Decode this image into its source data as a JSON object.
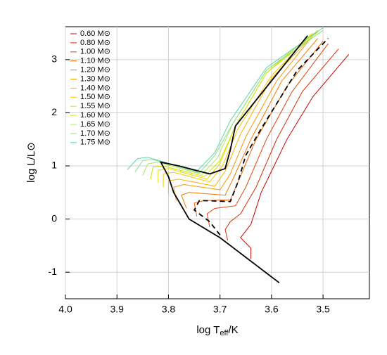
{
  "chart_data": {
    "type": "line",
    "x_label": "log T",
    "x_label_sub": "eff",
    "x_label_suffix": "/K",
    "y_label": "log L/L⊙",
    "xlim": [
      4.0,
      3.41
    ],
    "ylim": [
      -1.5,
      3.62
    ],
    "xticks": [
      {
        "value": 4.0,
        "label": "4.0"
      },
      3.9,
      3.8,
      3.7,
      3.6,
      3.5
    ],
    "yticks": [
      -1,
      0,
      1,
      2,
      3
    ],
    "grid": true,
    "legend": "upper left",
    "series": [
      {
        "name": "0.60 M⊙",
        "color": "#cc0000",
        "x": [
          3.64,
          3.64,
          3.66,
          3.64,
          3.62,
          3.57,
          3.52,
          3.45
        ],
        "values": [
          -0.75,
          -0.55,
          -0.35,
          -0.1,
          0.5,
          1.5,
          2.3,
          3.1
        ]
      },
      {
        "name": "0.80 M⊙",
        "color": "#d42a00",
        "x": [
          3.685,
          3.69,
          3.68,
          3.66,
          3.63,
          3.59,
          3.54,
          3.47
        ],
        "values": [
          -0.4,
          -0.2,
          -0.05,
          0.1,
          0.6,
          1.5,
          2.4,
          3.2
        ]
      },
      {
        "name": "1.00 M⊙",
        "color": "#e04500",
        "x": [
          3.72,
          3.725,
          3.71,
          3.67,
          3.65,
          3.61,
          3.56,
          3.49
        ],
        "values": [
          -0.15,
          0.1,
          0.2,
          0.25,
          0.6,
          1.5,
          2.4,
          3.3
        ]
      },
      {
        "name": "1.10 M⊙",
        "color": "#e86000",
        "x": [
          3.745,
          3.75,
          3.73,
          3.68,
          3.665,
          3.63,
          3.57,
          3.5
        ],
        "values": [
          0.05,
          0.3,
          0.35,
          0.36,
          0.7,
          1.5,
          2.5,
          3.35
        ]
      },
      {
        "name": "1.20 M⊙",
        "color": "#ef7a00",
        "x": [
          3.765,
          3.775,
          3.76,
          3.69,
          3.675,
          3.64,
          3.58,
          3.51
        ],
        "values": [
          0.2,
          0.45,
          0.5,
          0.45,
          0.75,
          1.5,
          2.6,
          3.4
        ]
      },
      {
        "name": "1.30 M⊙",
        "color": "#f59a00",
        "x": [
          3.785,
          3.79,
          3.77,
          3.7,
          3.68,
          3.65,
          3.59,
          3.52
        ],
        "values": [
          0.35,
          0.6,
          0.65,
          0.55,
          0.85,
          1.55,
          2.6,
          3.45
        ]
      },
      {
        "name": "1.40 M⊙",
        "color": "#f8b400",
        "x": [
          3.8,
          3.8,
          3.78,
          3.71,
          3.69,
          3.66,
          3.6,
          3.52
        ],
        "values": [
          0.48,
          0.72,
          0.75,
          0.62,
          0.9,
          1.6,
          2.65,
          3.45
        ]
      },
      {
        "name": "1.50 M⊙",
        "color": "#f2c800",
        "x": [
          3.81,
          3.81,
          3.79,
          3.72,
          3.695,
          3.665,
          3.6,
          3.52
        ],
        "values": [
          0.6,
          0.85,
          0.88,
          0.7,
          1.0,
          1.7,
          2.7,
          3.5
        ]
      },
      {
        "name": "1.55 M⊙",
        "color": "#e8dc00",
        "x": [
          3.82,
          3.82,
          3.8,
          3.725,
          3.7,
          3.67,
          3.61,
          3.52
        ],
        "values": [
          0.68,
          0.92,
          0.95,
          0.75,
          1.05,
          1.75,
          2.75,
          3.5
        ]
      },
      {
        "name": "1.60 M⊙",
        "color": "#d2e400",
        "x": [
          3.835,
          3.83,
          3.81,
          3.73,
          3.7,
          3.67,
          3.61,
          3.51
        ],
        "values": [
          0.75,
          0.98,
          1.0,
          0.8,
          1.1,
          1.75,
          2.75,
          3.52
        ]
      },
      {
        "name": "1.65 M⊙",
        "color": "#b4e65a",
        "x": [
          3.85,
          3.84,
          3.82,
          3.735,
          3.705,
          3.675,
          3.61,
          3.51
        ],
        "values": [
          0.82,
          1.04,
          1.07,
          0.84,
          1.15,
          1.8,
          2.8,
          3.55
        ]
      },
      {
        "name": "1.70 M⊙",
        "color": "#8ede8e",
        "x": [
          3.865,
          3.85,
          3.83,
          3.74,
          3.71,
          3.675,
          3.61,
          3.5
        ],
        "values": [
          0.88,
          1.1,
          1.12,
          0.87,
          1.2,
          1.8,
          2.8,
          3.55
        ]
      },
      {
        "name": "1.75 M⊙",
        "color": "#5cd6a6",
        "x": [
          3.88,
          3.86,
          3.84,
          3.745,
          3.71,
          3.68,
          3.61,
          3.5
        ],
        "values": [
          0.93,
          1.14,
          1.16,
          0.9,
          1.25,
          1.85,
          2.85,
          3.6
        ]
      },
      {
        "color": "#000000",
        "x": [
          3.585,
          3.7,
          3.76,
          3.79,
          3.8,
          3.815,
          3.78,
          3.72,
          3.69,
          3.68,
          3.67,
          3.53
        ],
        "values": [
          -1.2,
          -0.35,
          0.0,
          0.5,
          0.8,
          1.07,
          1.0,
          0.85,
          0.95,
          1.3,
          1.75,
          3.45
        ]
      },
      {
        "color": "#000000",
        "dash": true,
        "x": [
          3.7,
          3.72,
          3.75,
          3.74,
          3.68,
          3.665,
          3.65,
          3.62,
          3.55,
          3.49
        ],
        "values": [
          -0.3,
          -0.05,
          0.17,
          0.35,
          0.33,
          0.7,
          1.2,
          1.7,
          2.8,
          3.4
        ]
      }
    ]
  }
}
